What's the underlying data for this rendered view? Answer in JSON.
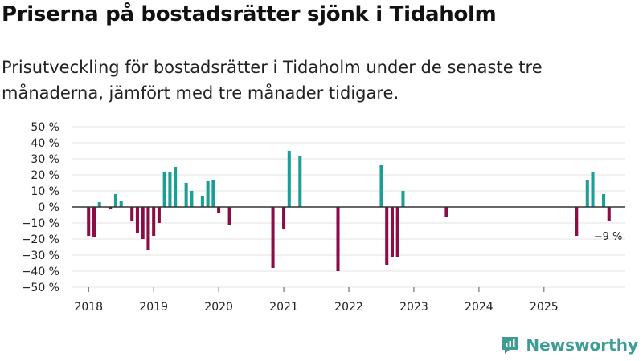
{
  "title": "Priserna på bostadsrätter sjönk i Tidaholm",
  "subtitle": "Prisutveckling för bostadsrätter i Tidaholm under de senaste tre månaderna, jämfört med tre månader tidigare.",
  "brand": {
    "name": "Newsworthy",
    "icon": "newsworthy-logo-icon"
  },
  "colors": {
    "positive": "#1a9e95",
    "negative": "#8b0d45",
    "zero_line": "#333333",
    "grid": "#e3e3e3"
  },
  "chart_data": {
    "type": "bar",
    "title": "Priserna på bostadsrätter sjönk i Tidaholm",
    "xlabel": "",
    "ylabel": "",
    "ylim": [
      -50,
      50
    ],
    "y_ticks": [
      50,
      40,
      30,
      20,
      10,
      0,
      -10,
      -20,
      -30,
      -40,
      -50
    ],
    "y_tick_labels": [
      "50 %",
      "40 %",
      "30 %",
      "20 %",
      "10 %",
      "0 %",
      "−10 %",
      "−20 %",
      "−30 %",
      "−40 %",
      "−50 %"
    ],
    "x_ticks": [
      {
        "label": "2018",
        "pos": 0
      },
      {
        "label": "2019",
        "pos": 12
      },
      {
        "label": "2020",
        "pos": 24
      },
      {
        "label": "2021",
        "pos": 36
      },
      {
        "label": "2022",
        "pos": 48
      },
      {
        "label": "2023",
        "pos": 60
      },
      {
        "label": "2024",
        "pos": 72
      },
      {
        "label": "2025",
        "pos": 84
      }
    ],
    "x_range": [
      -3,
      99
    ],
    "grid": true,
    "series": [
      {
        "name": "Prisutveckling",
        "values": [
          -18,
          -19,
          3,
          null,
          -1,
          8,
          4,
          null,
          -9,
          -16,
          -20,
          -27,
          -18,
          -10,
          22,
          22,
          25,
          null,
          15,
          10,
          null,
          7,
          16,
          17,
          -4,
          null,
          -11,
          null,
          null,
          null,
          null,
          null,
          null,
          null,
          -38,
          null,
          -14,
          35,
          null,
          32,
          null,
          null,
          null,
          null,
          null,
          null,
          -40,
          null,
          null,
          null,
          null,
          null,
          null,
          null,
          26,
          -36,
          -31,
          -31,
          10,
          null,
          null,
          null,
          null,
          null,
          null,
          null,
          -6,
          null,
          null,
          null,
          null,
          null,
          null,
          null,
          null,
          null,
          null,
          null,
          null,
          null,
          null,
          null,
          null,
          null,
          null,
          null,
          null,
          null,
          null,
          null,
          -18,
          null,
          17,
          22,
          null,
          8,
          -9
        ]
      }
    ],
    "annotations": [
      {
        "label": "−9 %",
        "index": 96
      }
    ]
  }
}
